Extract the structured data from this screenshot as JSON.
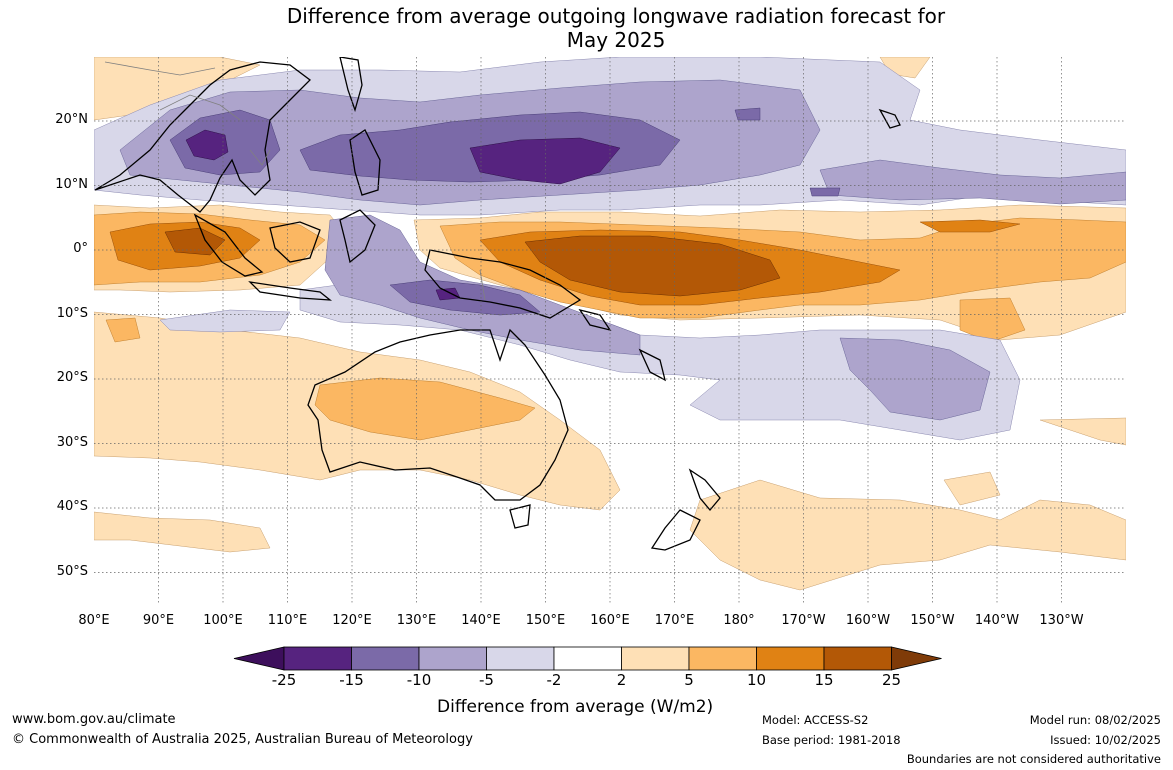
{
  "header": {
    "title_line1": "Difference from average outgoing longwave radiation forecast for",
    "title_line2": "May 2025"
  },
  "axes": {
    "lat_labels": [
      "20°N",
      "10°N",
      "0°",
      "10°S",
      "20°S",
      "30°S",
      "40°S",
      "50°S"
    ],
    "lon_labels": [
      "80°E",
      "90°E",
      "100°E",
      "110°E",
      "120°E",
      "130°E",
      "140°E",
      "150°E",
      "160°E",
      "170°E",
      "180°",
      "170°W",
      "160°W",
      "150°W",
      "140°W",
      "130°W"
    ]
  },
  "colorbar": {
    "ticks": [
      "-25",
      "-15",
      "-10",
      "-5",
      "-2",
      "2",
      "5",
      "10",
      "15",
      "25"
    ],
    "colors": [
      "#3d0f5c",
      "#56237f",
      "#7b6aa8",
      "#ada4cc",
      "#d8d7e9",
      "#ffffff",
      "#fee0b6",
      "#fbb762",
      "#e08214",
      "#b35806",
      "#7f3b08"
    ],
    "label": "Difference from average (W/m2)"
  },
  "footer": {
    "website": "www.bom.gov.au/climate",
    "copyright": "© Commonwealth of Australia 2025, Australian Bureau of Meteorology",
    "model": "Model: ACCESS-S2",
    "base_period": "Base period: 1981-2018",
    "model_run": "Model run: 08/02/2025",
    "issued": "Issued: 10/02/2025",
    "disclaimer": "Boundaries are not considered authoritative"
  }
}
